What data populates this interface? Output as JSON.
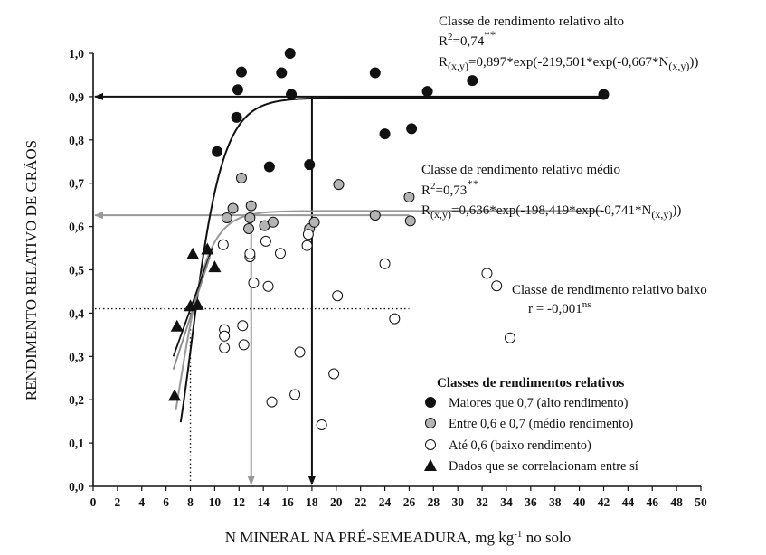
{
  "chart_data": {
    "type": "scatter",
    "xlabel_main": "N MINERAL NA PRÉ-SEMEADURA, mg kg",
    "xlabel_sup": "-1",
    "xlabel_tail": " no solo",
    "ylabel": "RENDIMENTO RELATIVO DE GRÃOS",
    "xlim": [
      0,
      50
    ],
    "ylim": [
      0,
      1.0
    ],
    "xticks": [
      "0",
      "2",
      "4",
      "6",
      "8",
      "10",
      "12",
      "14",
      "16",
      "18",
      "20",
      "22",
      "24",
      "26",
      "28",
      "30",
      "32",
      "34",
      "36",
      "38",
      "40",
      "42",
      "44",
      "46",
      "48",
      "50"
    ],
    "yticks": [
      "0,0",
      "0,1",
      "0,2",
      "0,3",
      "0,4",
      "0,5",
      "0,6",
      "0,7",
      "0,8",
      "0,9",
      "1,0"
    ],
    "series": [
      {
        "name": "Maiores que 0,7 (alto rendimento)",
        "marker": "circle",
        "fill": "#111111",
        "points": [
          [
            10.2,
            0.773
          ],
          [
            11.8,
            0.852
          ],
          [
            11.9,
            0.916
          ],
          [
            12.2,
            0.957
          ],
          [
            14.5,
            0.738
          ],
          [
            15.5,
            0.955
          ],
          [
            16.2,
            1.0
          ],
          [
            16.3,
            0.905
          ],
          [
            17.8,
            0.743
          ],
          [
            23.2,
            0.955
          ],
          [
            24.0,
            0.814
          ],
          [
            26.2,
            0.826
          ],
          [
            27.5,
            0.912
          ],
          [
            31.2,
            0.937
          ],
          [
            42.0,
            0.905
          ]
        ]
      },
      {
        "name": "Entre 0,6 e 0,7 (médio rendimento)",
        "marker": "circle",
        "fill": "#b4b4b4",
        "points": [
          [
            11.0,
            0.62
          ],
          [
            11.5,
            0.642
          ],
          [
            12.2,
            0.712
          ],
          [
            12.8,
            0.595
          ],
          [
            12.9,
            0.62
          ],
          [
            13.0,
            0.648
          ],
          [
            14.1,
            0.602
          ],
          [
            14.8,
            0.61
          ],
          [
            17.8,
            0.595
          ],
          [
            18.2,
            0.61
          ],
          [
            20.2,
            0.697
          ],
          [
            23.2,
            0.626
          ],
          [
            26.0,
            0.668
          ],
          [
            26.1,
            0.613
          ]
        ]
      },
      {
        "name": "Até 0,6 (baixo rendimento)",
        "marker": "circle",
        "fill": "#ffffff",
        "points": [
          [
            10.7,
            0.558
          ],
          [
            10.8,
            0.362
          ],
          [
            10.8,
            0.347
          ],
          [
            10.8,
            0.32
          ],
          [
            12.3,
            0.371
          ],
          [
            12.4,
            0.327
          ],
          [
            12.9,
            0.53
          ],
          [
            12.9,
            0.537
          ],
          [
            13.2,
            0.47
          ],
          [
            14.2,
            0.566
          ],
          [
            14.4,
            0.462
          ],
          [
            14.7,
            0.195
          ],
          [
            15.4,
            0.538
          ],
          [
            16.6,
            0.212
          ],
          [
            17.0,
            0.31
          ],
          [
            17.6,
            0.556
          ],
          [
            17.7,
            0.582
          ],
          [
            18.8,
            0.142
          ],
          [
            19.8,
            0.26
          ],
          [
            20.1,
            0.44
          ],
          [
            24.0,
            0.514
          ],
          [
            24.8,
            0.387
          ],
          [
            32.4,
            0.492
          ],
          [
            33.2,
            0.463
          ],
          [
            34.3,
            0.343
          ]
        ]
      },
      {
        "name": "Dados que se correlacionam entre sí",
        "marker": "triangle",
        "fill": "#111111",
        "points": [
          [
            6.7,
            0.21
          ],
          [
            6.9,
            0.37
          ],
          [
            8.0,
            0.417
          ],
          [
            8.2,
            0.537
          ],
          [
            8.6,
            0.42
          ],
          [
            9.4,
            0.548
          ],
          [
            10.0,
            0.507
          ]
        ]
      }
    ],
    "fits": [
      {
        "name": "alto",
        "color": "#111111",
        "a": 0.897,
        "b": -219.501,
        "c": -0.667,
        "x_start": 7.2
      },
      {
        "name": "medio",
        "color": "#999999",
        "a": 0.636,
        "b": -198.419,
        "c": -0.741,
        "x_start": 6.8
      }
    ],
    "triangle_lines": [
      {
        "color": "#111111",
        "from": [
          6.6,
          0.3
        ],
        "to": [
          9.8,
          0.55
        ]
      },
      {
        "color": "#888888",
        "from": [
          6.6,
          0.27
        ],
        "to": [
          9.6,
          0.53
        ]
      }
    ],
    "guides": [
      {
        "color": "#111111",
        "level": 0.9,
        "x_right": 42,
        "x_drop": 18.0,
        "dashed": false
      },
      {
        "color": "#999999",
        "level": 0.626,
        "x_right": 26,
        "x_drop": 13.0,
        "dashed": false
      },
      {
        "color": "#111111",
        "level": 0.41,
        "x_right": 26,
        "x_drop": 8.0,
        "dashed": true
      }
    ],
    "annotations": {
      "alto": {
        "title": "Classe de rendimento relativo alto",
        "r2": "R",
        "r2_sup": "2",
        "r2_val": "=0,74",
        "r2_stars": "**",
        "eq_r": "R",
        "eq_sub": "(x,y)",
        "eq_mid": "=0,897*exp(-219,501*exp(-0,667*N",
        "eq_sub2": "(x,y)",
        "eq_end": "))"
      },
      "medio": {
        "title": "Classe de rendimento relativo médio",
        "r2": "R",
        "r2_sup": "2",
        "r2_val": "=0,73",
        "r2_stars": "**",
        "eq_r": "R",
        "eq_sub": "(x,y)",
        "eq_mid": "=0,636*exp(-198,419*exp(-0,741*N",
        "eq_sub2": "(x,y)",
        "eq_end": "))"
      },
      "baixo": {
        "title": "Classe de rendimento relativo baixo",
        "r_text": "r = -0,001",
        "r_sup": "ns"
      }
    },
    "legend": {
      "title": "Classes de rendimentos relativos",
      "position": "bottom-right"
    }
  }
}
